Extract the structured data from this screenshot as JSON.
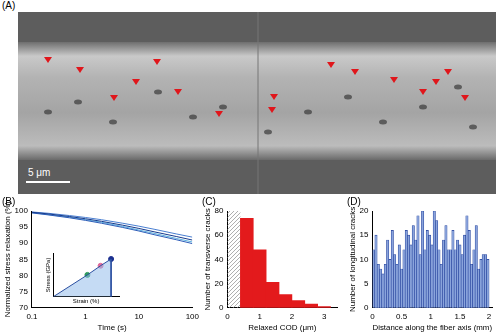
{
  "image_panel": {
    "label": "(A)",
    "scale_bar": "5 μm"
  },
  "chart_data": [
    {
      "title": "(B)",
      "type": "line",
      "x_label": "Time (s)",
      "y_label": "Normalized stress relaxation (%)",
      "log": "x",
      "grid": false,
      "x": [
        0.1,
        0.2,
        0.5,
        1,
        2,
        5,
        10,
        20,
        50,
        100
      ],
      "series": [
        {
          "color": "#173a8c",
          "values": [
            99.6,
            99.1,
            98.3,
            97.6,
            96.8,
            95.6,
            94.6,
            93.5,
            92.1,
            91.0
          ]
        },
        {
          "color": "#2e5cb8",
          "values": [
            99.4,
            98.8,
            97.9,
            97.1,
            96.2,
            94.9,
            93.8,
            92.6,
            91.1,
            89.9
          ]
        },
        {
          "color": "#4a7fd1",
          "values": [
            99.7,
            99.3,
            98.6,
            98.0,
            97.3,
            96.2,
            95.3,
            94.3,
            92.9,
            91.9
          ]
        },
        {
          "color": "#5ab0e0",
          "values": [
            99.5,
            98.9,
            98.1,
            97.3,
            96.5,
            95.2,
            94.1,
            93.0,
            91.5,
            90.4
          ]
        }
      ],
      "xlim": [
        0.1,
        100
      ],
      "xticks": [
        0.1,
        1,
        10,
        100
      ],
      "ylim": [
        70,
        100
      ],
      "yticks": [
        70,
        75,
        80,
        85,
        90,
        95,
        100
      ],
      "inset": {
        "type": "line",
        "x_label": "Strain (%)",
        "y_label": "Stress (GPa)",
        "tick_labels": false,
        "grid": false,
        "x": [
          0,
          2.6,
          3.6,
          4.4,
          4.4
        ],
        "series": [
          {
            "type": "line",
            "color": "#2b4fa0",
            "values": [
              0,
              0.55,
              0.78,
              0.95,
              0
            ]
          },
          {
            "type": "scatter",
            "colors": [
              "#2e9a5e",
              "#e06a9a",
              "#1c2f8f"
            ],
            "values": [
              null,
              0.55,
              0.78,
              0.95,
              null
            ]
          }
        ],
        "xlim": [
          0,
          5
        ],
        "ylim": [
          0,
          1.1
        ]
      }
    },
    {
      "title": "(C)",
      "type": "histogram",
      "x_label": "Relaxed COD (μm)",
      "y_label": "Number of transverse cracks",
      "grid": false,
      "color": "#e31a1c",
      "bins": [
        0.4,
        0.8,
        1.2,
        1.6,
        2.0,
        2.4,
        2.8,
        3.2
      ],
      "values": [
        74,
        48,
        21,
        11,
        6,
        3,
        1
      ],
      "hatched_range": [
        0,
        0.4
      ],
      "xlim": [
        0,
        3.4
      ],
      "xticks": [
        0,
        1,
        2,
        3
      ],
      "ylim": [
        0,
        80
      ],
      "yticks": [
        0,
        20,
        40,
        60,
        80
      ]
    },
    {
      "title": "(D)",
      "type": "histogram",
      "x_label": "Distance along the fiber axis (mm)",
      "y_label": "Number of longitudinal cracks",
      "grid": false,
      "color": "#8aa4dc",
      "bins": [
        0,
        0.04,
        0.08,
        0.12,
        0.16,
        0.2,
        0.24,
        0.28,
        0.32,
        0.36,
        0.4,
        0.44,
        0.48,
        0.52,
        0.56,
        0.6,
        0.64,
        0.68,
        0.72,
        0.76,
        0.8,
        0.84,
        0.88,
        0.92,
        0.96,
        1,
        1.04,
        1.08,
        1.12,
        1.16,
        1.2,
        1.24,
        1.28,
        1.32,
        1.36,
        1.4,
        1.44,
        1.48,
        1.52,
        1.56,
        1.6,
        1.64,
        1.68,
        1.72,
        1.76,
        1.8,
        1.84,
        1.88,
        1.92,
        1.96,
        2
      ],
      "values": [
        12,
        15,
        9,
        8,
        7,
        9,
        14,
        10,
        16,
        11,
        9,
        13,
        8,
        12,
        16,
        15,
        13,
        17,
        14,
        19,
        11,
        20,
        12,
        16,
        15,
        13,
        20,
        18,
        12,
        9,
        14,
        17,
        12,
        12,
        16,
        12,
        14,
        13,
        11,
        15,
        19,
        16,
        9,
        12,
        17,
        8,
        10,
        11,
        11,
        10
      ],
      "xlim": [
        0,
        2.05
      ],
      "xticks": [
        0,
        0.5,
        1,
        1.5,
        2
      ],
      "ylim": [
        0,
        20
      ],
      "yticks": [
        0,
        5,
        10,
        15,
        20
      ]
    }
  ]
}
